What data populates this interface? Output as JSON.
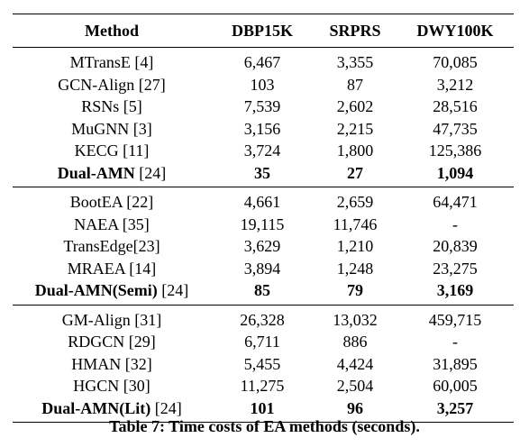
{
  "table": {
    "headers": [
      "Method",
      "DBP15K",
      "SRPRS",
      "DWY100K"
    ],
    "groups": [
      {
        "rows": [
          {
            "name": "MTransE",
            "ref": " [4]",
            "values": [
              "6,467",
              "3,355",
              "70,085"
            ],
            "bold": false
          },
          {
            "name": "GCN-Align",
            "ref": " [27]",
            "values": [
              "103",
              "87",
              "3,212"
            ],
            "bold": false
          },
          {
            "name": "RSNs",
            "ref": " [5]",
            "values": [
              "7,539",
              "2,602",
              "28,516"
            ],
            "bold": false
          },
          {
            "name": "MuGNN",
            "ref": " [3]",
            "values": [
              "3,156",
              "2,215",
              "47,735"
            ],
            "bold": false
          },
          {
            "name": "KECG",
            "ref": " [11]",
            "values": [
              "3,724",
              "1,800",
              "125,386"
            ],
            "bold": false
          },
          {
            "name": "Dual-AMN",
            "ref": " [24]",
            "values": [
              "35",
              "27",
              "1,094"
            ],
            "bold": true
          }
        ]
      },
      {
        "rows": [
          {
            "name": "BootEA",
            "ref": " [22]",
            "values": [
              "4,661",
              "2,659",
              "64,471"
            ],
            "bold": false
          },
          {
            "name": "NAEA",
            "ref": " [35]",
            "values": [
              "19,115",
              "11,746",
              "-"
            ],
            "bold": false
          },
          {
            "name": "TransEdge",
            "ref": "[23]",
            "values": [
              "3,629",
              "1,210",
              "20,839"
            ],
            "bold": false
          },
          {
            "name": "MRAEA",
            "ref": " [14]",
            "values": [
              "3,894",
              "1,248",
              "23,275"
            ],
            "bold": false
          },
          {
            "name": "Dual-AMN(Semi)",
            "ref": " [24]",
            "values": [
              "85",
              "79",
              "3,169"
            ],
            "bold": true
          }
        ]
      },
      {
        "rows": [
          {
            "name": "GM-Align",
            "ref": " [31]",
            "values": [
              "26,328",
              "13,032",
              "459,715"
            ],
            "bold": false
          },
          {
            "name": "RDGCN",
            "ref": " [29]",
            "values": [
              "6,711",
              "886",
              "-"
            ],
            "bold": false
          },
          {
            "name": "HMAN",
            "ref": " [32]",
            "values": [
              "5,455",
              "4,424",
              "31,895"
            ],
            "bold": false
          },
          {
            "name": "HGCN",
            "ref": " [30]",
            "values": [
              "11,275",
              "2,504",
              "60,005"
            ],
            "bold": false
          },
          {
            "name": "Dual-AMN(Lit)",
            "ref": " [24]",
            "values": [
              "101",
              "96",
              "3,257"
            ],
            "bold": true
          }
        ]
      }
    ]
  },
  "caption": "Table 7: Time costs of EA methods (seconds)."
}
